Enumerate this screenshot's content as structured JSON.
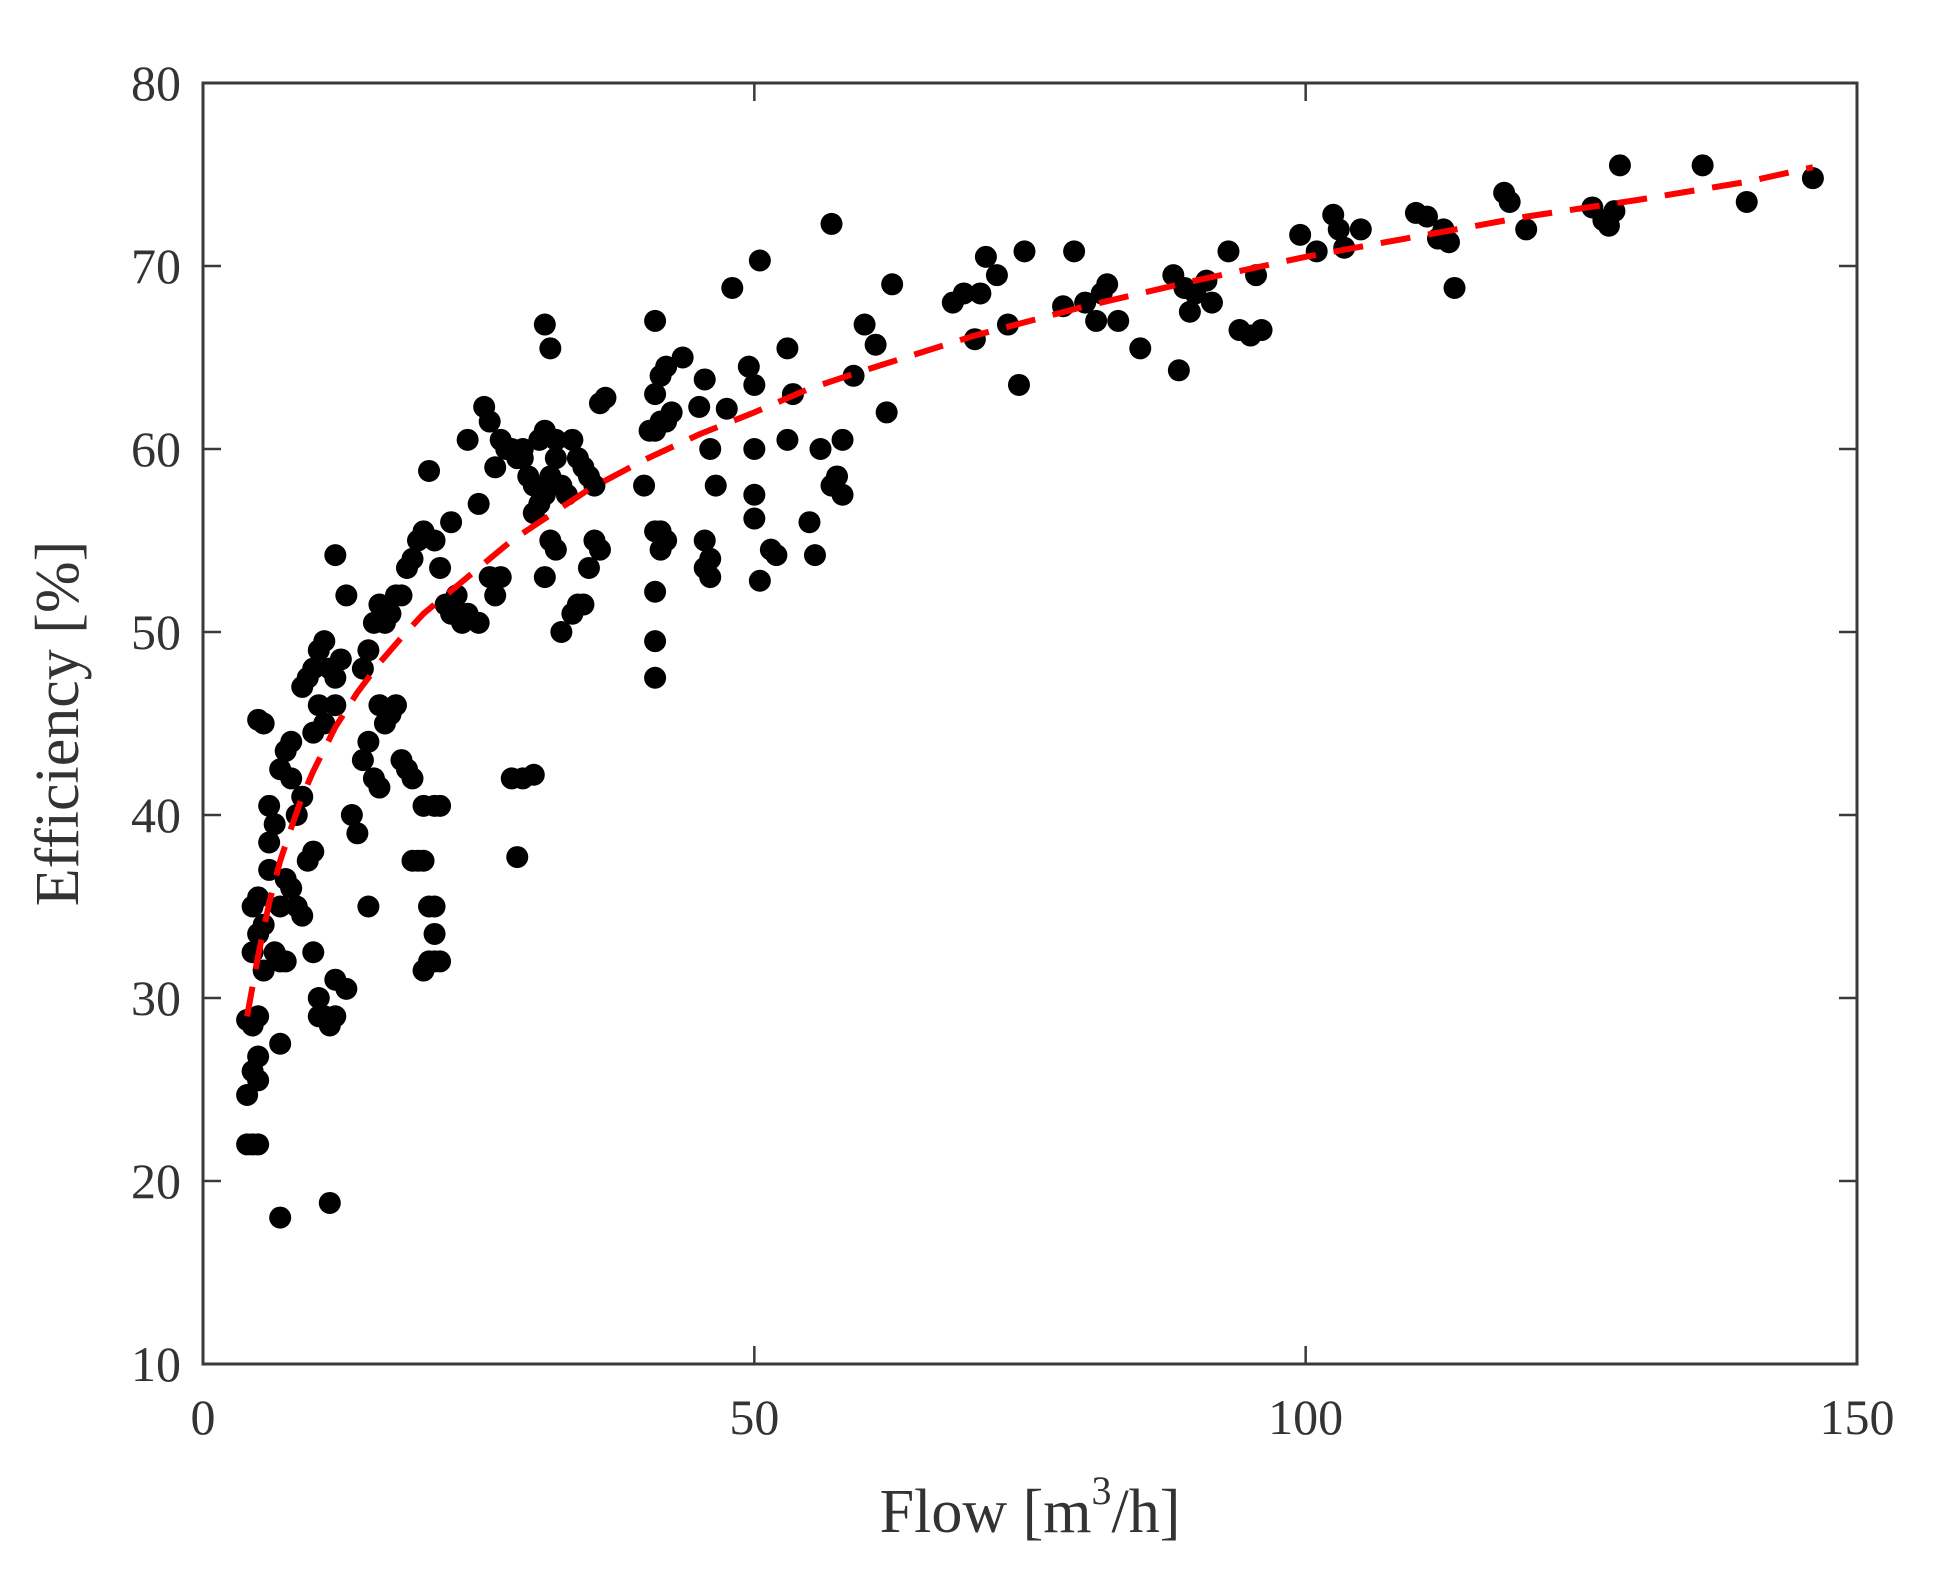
{
  "chart_data": {
    "type": "scatter",
    "title": "",
    "xlabel_parts": {
      "prefix": "Flow [m",
      "sup": "3",
      "suffix": "/h]"
    },
    "xlabel": "Flow [m3/h]",
    "ylabel": "Efficiency [%]",
    "xlim": [
      0,
      150
    ],
    "ylim": [
      10,
      80
    ],
    "xticks": [
      0,
      50,
      100,
      150
    ],
    "xtick_labels": [
      "0",
      "50",
      "100",
      "150"
    ],
    "yticks": [
      10,
      20,
      30,
      40,
      50,
      60,
      70,
      80
    ],
    "ytick_labels": [
      "10",
      "20",
      "30",
      "40",
      "50",
      "60",
      "70",
      "80"
    ],
    "grid": false,
    "legend": false,
    "marker_color": "#000000",
    "fit_color": "#ff0000",
    "series": [
      {
        "kind": "scatter",
        "points": [
          [
            4,
            22
          ],
          [
            4.5,
            22
          ],
          [
            5,
            22
          ],
          [
            4,
            24.7
          ],
          [
            4.5,
            26
          ],
          [
            5,
            25.5
          ],
          [
            5,
            26.8
          ],
          [
            4,
            28.8
          ],
          [
            4.5,
            28.5
          ],
          [
            5,
            29
          ],
          [
            4.5,
            32.5
          ],
          [
            5,
            33.5
          ],
          [
            5.5,
            31.5
          ],
          [
            4.5,
            35
          ],
          [
            5,
            35.5
          ],
          [
            5.5,
            34
          ],
          [
            6,
            37
          ],
          [
            6,
            38.5
          ],
          [
            6.5,
            39.5
          ],
          [
            6,
            40.5
          ],
          [
            7,
            42.5
          ],
          [
            7.5,
            43.5
          ],
          [
            8,
            42
          ],
          [
            8,
            44
          ],
          [
            8.5,
            40
          ],
          [
            9,
            41
          ],
          [
            9.5,
            37.5
          ],
          [
            10,
            38
          ],
          [
            7,
            35
          ],
          [
            7.5,
            36.5
          ],
          [
            8,
            36
          ],
          [
            8.5,
            35
          ],
          [
            9,
            34.5
          ],
          [
            6.5,
            32.5
          ],
          [
            7,
            32
          ],
          [
            7.5,
            32
          ],
          [
            7,
            27.5
          ],
          [
            10,
            32.5
          ],
          [
            10.5,
            30
          ],
          [
            10.5,
            29
          ],
          [
            11,
            29
          ],
          [
            11.5,
            28.5
          ],
          [
            12,
            29
          ],
          [
            12,
            31
          ],
          [
            13,
            30.5
          ],
          [
            5,
            45.2
          ],
          [
            5.5,
            45
          ],
          [
            9,
            47
          ],
          [
            9.5,
            47.5
          ],
          [
            10,
            48
          ],
          [
            10.5,
            49
          ],
          [
            11,
            49.5
          ],
          [
            11.5,
            48
          ],
          [
            10,
            44.5
          ],
          [
            10.5,
            46
          ],
          [
            11,
            45
          ],
          [
            12,
            46
          ],
          [
            12,
            47.5
          ],
          [
            12.5,
            48.5
          ],
          [
            12,
            54.2
          ],
          [
            13,
            52
          ],
          [
            7,
            18
          ],
          [
            11.5,
            18.8
          ],
          [
            13.5,
            40
          ],
          [
            14,
            39
          ],
          [
            15,
            35
          ],
          [
            14.5,
            43
          ],
          [
            15,
            44
          ],
          [
            15.5,
            42
          ],
          [
            16,
            41.5
          ],
          [
            16,
            46
          ],
          [
            16.5,
            45
          ],
          [
            17,
            45.5
          ],
          [
            17.5,
            46
          ],
          [
            18,
            43
          ],
          [
            18.5,
            42.5
          ],
          [
            19,
            42
          ],
          [
            19,
            37.5
          ],
          [
            19.5,
            37.5
          ],
          [
            20,
            37.5
          ],
          [
            20,
            40.5
          ],
          [
            21,
            40.5
          ],
          [
            21.5,
            40.5
          ],
          [
            20.5,
            35
          ],
          [
            21,
            35
          ],
          [
            21,
            33.5
          ],
          [
            20,
            31.5
          ],
          [
            20.5,
            32
          ],
          [
            21,
            32
          ],
          [
            21.5,
            32
          ],
          [
            14.5,
            48
          ],
          [
            15,
            49
          ],
          [
            15.5,
            50.5
          ],
          [
            16,
            51.5
          ],
          [
            16.5,
            50.5
          ],
          [
            17,
            51
          ],
          [
            17.5,
            52
          ],
          [
            18,
            52
          ],
          [
            18.5,
            53.5
          ],
          [
            19,
            54
          ],
          [
            19.5,
            55
          ],
          [
            20,
            55.5
          ],
          [
            21,
            55
          ],
          [
            21.5,
            53.5
          ],
          [
            22,
            51.5
          ],
          [
            22.5,
            51
          ],
          [
            23,
            52
          ],
          [
            23.5,
            50.5
          ],
          [
            24,
            51
          ],
          [
            25,
            50.5
          ],
          [
            20.5,
            58.8
          ],
          [
            22.5,
            56
          ],
          [
            24,
            60.5
          ],
          [
            25,
            57
          ],
          [
            25.5,
            62.3
          ],
          [
            26,
            61.5
          ],
          [
            26.5,
            59
          ],
          [
            27,
            60.5
          ],
          [
            27.5,
            60
          ],
          [
            28,
            60
          ],
          [
            28.5,
            59.5
          ],
          [
            29,
            59.5
          ],
          [
            29.5,
            58.5
          ],
          [
            30,
            58
          ],
          [
            30.5,
            57
          ],
          [
            31,
            57.5
          ],
          [
            31.5,
            58.5
          ],
          [
            32,
            59.5
          ],
          [
            32.5,
            58
          ],
          [
            33,
            57.5
          ],
          [
            33.5,
            60.5
          ],
          [
            34,
            59.5
          ],
          [
            34.5,
            59
          ],
          [
            35,
            58.5
          ],
          [
            35.5,
            58
          ],
          [
            32,
            60.5
          ],
          [
            31,
            61
          ],
          [
            30.5,
            60.5
          ],
          [
            29,
            60
          ],
          [
            30,
            56.5
          ],
          [
            26,
            53
          ],
          [
            27,
            53
          ],
          [
            26.5,
            52
          ],
          [
            28,
            42
          ],
          [
            29,
            42
          ],
          [
            30,
            42.2
          ],
          [
            28.5,
            37.7
          ],
          [
            31,
            53
          ],
          [
            31.5,
            55
          ],
          [
            32,
            54.5
          ],
          [
            32.5,
            50
          ],
          [
            33.5,
            51
          ],
          [
            34,
            51.5
          ],
          [
            34.5,
            51.5
          ],
          [
            35,
            53.5
          ],
          [
            35.5,
            55
          ],
          [
            36,
            54.5
          ],
          [
            36,
            62.5
          ],
          [
            36.5,
            62.8
          ],
          [
            31,
            66.8
          ],
          [
            31.5,
            65.5
          ],
          [
            40,
            58
          ],
          [
            40.5,
            61
          ],
          [
            41,
            61
          ],
          [
            41.5,
            61.5
          ],
          [
            42,
            61.5
          ],
          [
            41,
            63
          ],
          [
            41.5,
            64
          ],
          [
            42,
            64.5
          ],
          [
            42.5,
            62
          ],
          [
            41,
            67
          ],
          [
            41,
            55.5
          ],
          [
            41.5,
            55.5
          ],
          [
            42,
            55
          ],
          [
            41.5,
            54.5
          ],
          [
            41,
            52.2
          ],
          [
            41,
            49.5
          ],
          [
            41,
            47.5
          ],
          [
            43.5,
            65
          ],
          [
            45,
            62.3
          ],
          [
            45.5,
            63.8
          ],
          [
            46,
            60
          ],
          [
            46.5,
            58
          ],
          [
            47.5,
            62.2
          ],
          [
            45.5,
            55
          ],
          [
            46,
            54
          ],
          [
            45.5,
            53.5
          ],
          [
            46,
            53
          ],
          [
            48,
            68.8
          ],
          [
            49.5,
            64.5
          ],
          [
            50,
            63.5
          ],
          [
            50,
            60
          ],
          [
            50,
            57.5
          ],
          [
            50,
            56.2
          ],
          [
            50.5,
            70.3
          ],
          [
            50.5,
            52.8
          ],
          [
            51.5,
            54.5
          ],
          [
            52,
            54.2
          ],
          [
            53,
            60.5
          ],
          [
            53.5,
            63
          ],
          [
            53,
            65.5
          ],
          [
            55,
            56
          ],
          [
            55.5,
            54.2
          ],
          [
            56,
            60
          ],
          [
            57,
            58
          ],
          [
            57.5,
            58.5
          ],
          [
            58,
            60.5
          ],
          [
            57,
            72.3
          ],
          [
            58,
            57.5
          ],
          [
            59,
            64
          ],
          [
            60,
            66.8
          ],
          [
            61,
            65.7
          ],
          [
            62,
            62
          ],
          [
            62.5,
            69
          ],
          [
            68,
            68
          ],
          [
            69,
            68.5
          ],
          [
            70,
            66
          ],
          [
            70.5,
            68.5
          ],
          [
            71,
            70.5
          ],
          [
            72,
            69.5
          ],
          [
            73,
            66.8
          ],
          [
            74,
            63.5
          ],
          [
            74.5,
            70.8
          ],
          [
            78,
            67.8
          ],
          [
            79,
            70.8
          ],
          [
            80,
            68
          ],
          [
            81,
            67
          ],
          [
            81.5,
            68.5
          ],
          [
            82,
            69
          ],
          [
            83,
            67
          ],
          [
            85,
            65.5
          ],
          [
            88,
            69.5
          ],
          [
            88.5,
            64.3
          ],
          [
            89,
            68.8
          ],
          [
            89.5,
            67.5
          ],
          [
            90,
            68.5
          ],
          [
            91,
            69.2
          ],
          [
            91.5,
            68
          ],
          [
            93,
            70.8
          ],
          [
            94,
            66.5
          ],
          [
            95,
            66.2
          ],
          [
            95.5,
            69.5
          ],
          [
            96,
            66.5
          ],
          [
            99.5,
            71.7
          ],
          [
            101,
            70.8
          ],
          [
            102.5,
            72.8
          ],
          [
            103,
            72
          ],
          [
            103.5,
            71
          ],
          [
            105,
            72
          ],
          [
            110,
            72.9
          ],
          [
            111,
            72.7
          ],
          [
            112,
            71.5
          ],
          [
            112.5,
            72
          ],
          [
            113,
            71.3
          ],
          [
            113.5,
            68.8
          ],
          [
            118,
            74
          ],
          [
            118.5,
            73.5
          ],
          [
            120,
            72
          ],
          [
            126,
            73.2
          ],
          [
            127,
            72.5
          ],
          [
            127.5,
            72.2
          ],
          [
            128,
            73
          ],
          [
            128.5,
            75.5
          ],
          [
            136,
            75.5
          ],
          [
            140,
            73.5
          ],
          [
            146,
            74.8
          ]
        ]
      },
      {
        "kind": "fit",
        "style": "dashed",
        "x": [
          4,
          5,
          6,
          7,
          8,
          9,
          10,
          12,
          14,
          16,
          18,
          20,
          22,
          25,
          28,
          30,
          35,
          40,
          45,
          50,
          55,
          60,
          70,
          80,
          90,
          100,
          110,
          120,
          130,
          140,
          146
        ],
        "y": [
          29,
          32.3,
          35.2,
          37.5,
          39.3,
          41,
          42.4,
          44.8,
          46.7,
          48.3,
          49.7,
          51,
          52,
          53.5,
          55,
          55.8,
          57.8,
          59.4,
          60.8,
          62,
          63.3,
          64.3,
          66.2,
          67.8,
          69.2,
          70.5,
          71.6,
          72.7,
          73.6,
          74.6,
          75.4
        ]
      }
    ]
  }
}
